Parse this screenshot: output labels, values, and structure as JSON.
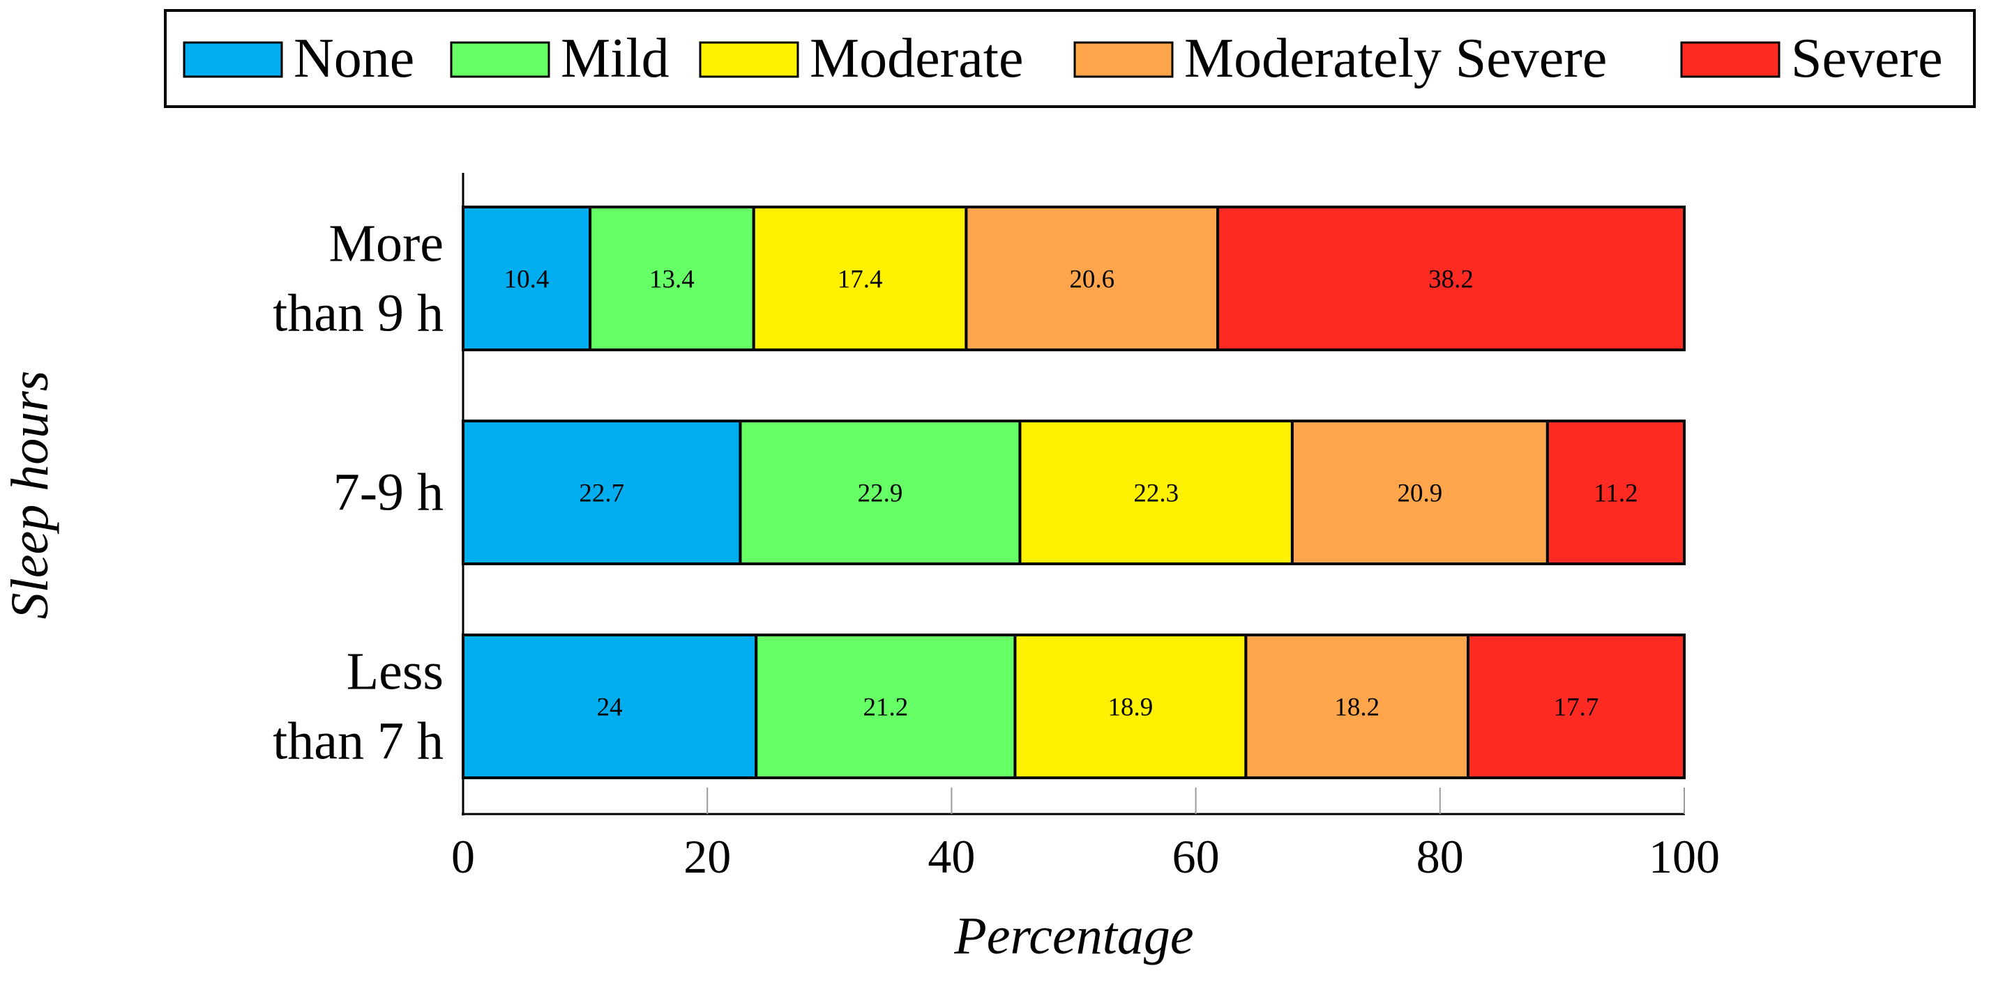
{
  "chart_data": {
    "type": "bar",
    "orientation": "horizontal",
    "stacked": true,
    "categories": [
      "More than 9 h",
      "7-9 h",
      "Less than 7 h"
    ],
    "category_lines": [
      [
        "More",
        "than 9 h"
      ],
      [
        "7-9 h"
      ],
      [
        "Less",
        "than 7 h"
      ]
    ],
    "series": [
      {
        "name": "None",
        "color": "#00AEEF",
        "values": [
          10.4,
          22.7,
          24
        ]
      },
      {
        "name": "Mild",
        "color": "#66FF66",
        "values": [
          13.4,
          22.9,
          21.2
        ]
      },
      {
        "name": "Moderate",
        "color": "#FFF200",
        "values": [
          17.4,
          22.3,
          18.9
        ]
      },
      {
        "name": "Moderately Severe",
        "color": "#FFA64D",
        "values": [
          20.6,
          20.9,
          18.2
        ]
      },
      {
        "name": "Severe",
        "color": "#FF2A22",
        "values": [
          38.2,
          11.2,
          17.7
        ]
      }
    ],
    "data_labels": [
      [
        "10.4",
        "13.4",
        "17.4",
        "20.6",
        "38.2"
      ],
      [
        "22.7",
        "22.9",
        "22.3",
        "20.9",
        "11.2"
      ],
      [
        "24",
        "21.2",
        "18.9",
        "18.2",
        "17.7"
      ]
    ],
    "xlabel": "Percentage",
    "ylabel": "Sleep hours",
    "xlim": [
      0,
      100
    ],
    "xticks": [
      0,
      20,
      40,
      60,
      80,
      100
    ],
    "xtick_labels": [
      "0",
      "20",
      "40",
      "60",
      "80",
      "100"
    ],
    "legend_position": "top",
    "grid": false
  }
}
